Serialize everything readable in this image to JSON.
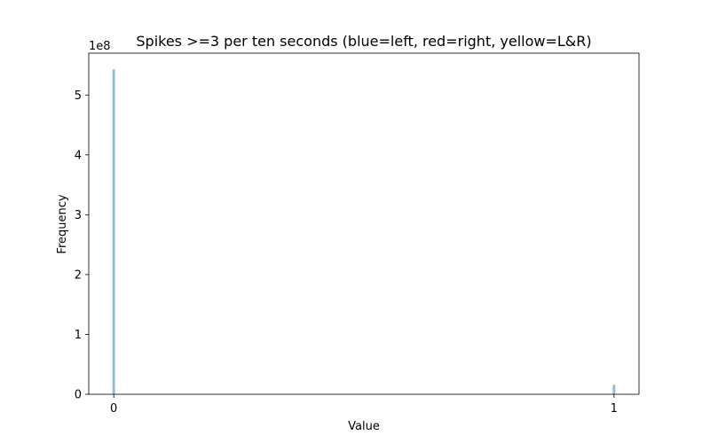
{
  "chart_data": {
    "type": "bar",
    "title": "Spikes >=3 per ten seconds (blue=left, red=right, yellow=L&R)",
    "xlabel": "Value",
    "ylabel": "Frequency",
    "y_offset_label": "1e8",
    "y_scale_factor": 100000000,
    "xlim": [
      -0.05,
      1.05
    ],
    "ylim": [
      0,
      570000000
    ],
    "x_ticks": [
      {
        "value": 0,
        "label": "0"
      },
      {
        "value": 1,
        "label": "1"
      }
    ],
    "y_ticks": [
      {
        "value": 0,
        "label": "0"
      },
      {
        "value": 100000000,
        "label": "1"
      },
      {
        "value": 200000000,
        "label": "2"
      },
      {
        "value": 300000000,
        "label": "3"
      },
      {
        "value": 400000000,
        "label": "4"
      },
      {
        "value": 500000000,
        "label": "5"
      }
    ],
    "bar_width": 0.005,
    "bar_color": "#1f77b4",
    "bar_opacity": 0.5,
    "x": [
      0,
      1
    ],
    "values": [
      543000000,
      16000000
    ],
    "grid": false,
    "legend": "none"
  }
}
